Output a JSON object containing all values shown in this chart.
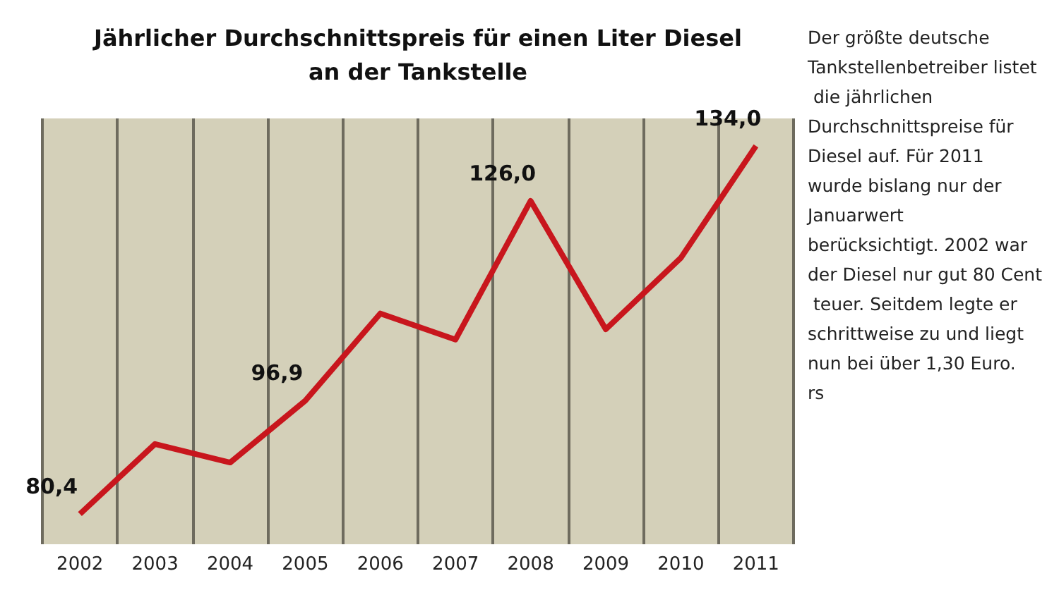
{
  "chart_data": {
    "type": "line",
    "title": "Jährlicher Durchschnittspreis für einen Liter Diesel\nan der Tankstelle",
    "categories": [
      "2002",
      "2003",
      "2004",
      "2005",
      "2006",
      "2007",
      "2008",
      "2009",
      "2010",
      "2011"
    ],
    "series": [
      {
        "color": "#c8161d",
        "values": [
          80.4,
          90.6,
          87.9,
          96.9,
          109.6,
          105.8,
          126.0,
          107.3,
          117.7,
          134.0
        ],
        "value_labels": [
          "80,4",
          null,
          null,
          "96,9",
          null,
          null,
          "126,0",
          null,
          null,
          "134,0"
        ]
      }
    ],
    "ylim": [
      76,
      138
    ],
    "tick_labels": "x",
    "grid": "x",
    "marker": "none",
    "line_style": "solid",
    "annotations": [
      "Der größte deutsche Tankstellenbetreiber listet die jährlichen Durchschnittspreise für Diesel auf. Für 2011 wurde bislang nur der Januarwert berücksichtigt. 2002 war der Diesel nur gut 80 Cent teuer. Seitdem legte er schrittweise zu und liegt nun bei über 1,30 Euro. rs"
    ]
  }
}
